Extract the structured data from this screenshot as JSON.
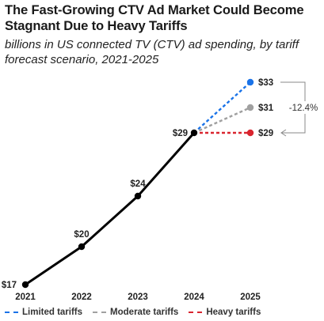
{
  "title": "The Fast-Growing CTV Ad Market Could Become Stagnant Due to Heavy Tariffs",
  "subtitle": "billions in US connected TV (CTV) ad spending, by tariff forecast scenario, 2021-2025",
  "chart_data": {
    "type": "line",
    "title": "The Fast-Growing CTV Ad Market Could Become Stagnant Due to Heavy Tariffs",
    "subtitle": "billions in US connected TV (CTV) ad spending, by tariff forecast scenario, 2021-2025",
    "xlabel": "",
    "ylabel": "",
    "categories": [
      "2021",
      "2022",
      "2023",
      "2024",
      "2025"
    ],
    "ylim": [
      17,
      33
    ],
    "grid": false,
    "legend_position": "bottom",
    "historical": {
      "x": [
        "2021",
        "2022",
        "2023",
        "2024"
      ],
      "values": [
        17,
        20,
        24,
        29
      ],
      "labels": [
        "$17",
        "$20",
        "$24",
        "$29"
      ],
      "color": "#000000"
    },
    "series": [
      {
        "name": "Limited tariffs",
        "x": [
          "2024",
          "2025"
        ],
        "values": [
          29,
          33
        ],
        "end_label": "$33",
        "color": "#1a73e8"
      },
      {
        "name": "Moderate tariffs",
        "x": [
          "2024",
          "2025"
        ],
        "values": [
          29,
          31
        ],
        "end_label": "$31",
        "color": "#a0a0a0"
      },
      {
        "name": "Heavy tariffs",
        "x": [
          "2024",
          "2025"
        ],
        "values": [
          29,
          29
        ],
        "end_label": "$29",
        "color": "#d9252f"
      }
    ],
    "annotation": {
      "text": "-12.4%",
      "from": "Limited tariffs",
      "to": "Heavy tariffs"
    }
  }
}
